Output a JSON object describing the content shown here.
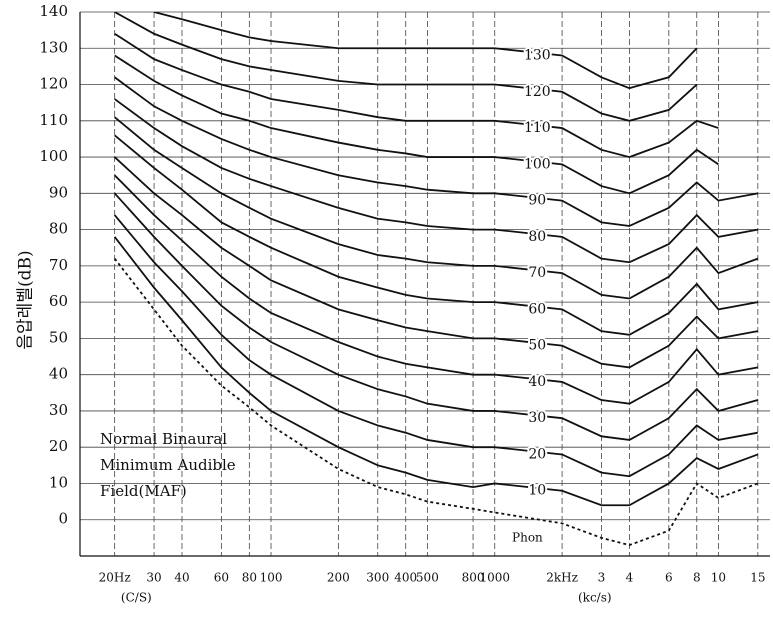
{
  "chart_data": {
    "type": "line",
    "y_label": "음압레벨(dB)",
    "x_unit_labels": [
      "(C/S)",
      "(kc/s)"
    ],
    "annotation_lines": [
      "Normal Binaural",
      "Minimum Audible",
      "Field(MAF)"
    ],
    "unit_label": "Phon",
    "x_scale": "log",
    "grid": true,
    "x": [
      20,
      30,
      40,
      60,
      80,
      100,
      200,
      300,
      400,
      500,
      800,
      1000,
      2000,
      3000,
      4000,
      6000,
      8000,
      10000,
      15000
    ],
    "xlim": [
      14,
      17000
    ],
    "xticks": [
      {
        "value": 20,
        "label": "20Hz"
      },
      30,
      40,
      60,
      80,
      100,
      200,
      300,
      400,
      500,
      800,
      1000,
      {
        "value": 2000,
        "label": "2kHz"
      },
      {
        "value": 3000,
        "label": "3"
      },
      {
        "value": 4000,
        "label": "4"
      },
      {
        "value": 6000,
        "label": "6"
      },
      {
        "value": 8000,
        "label": "8"
      },
      {
        "value": 10000,
        "label": "10"
      },
      {
        "value": 15000,
        "label": "15"
      }
    ],
    "ylim": [
      -10,
      140
    ],
    "yticks": [
      0,
      10,
      20,
      30,
      40,
      50,
      60,
      70,
      80,
      90,
      100,
      110,
      120,
      130,
      140
    ],
    "series": [
      {
        "name": "10",
        "color": "#111111",
        "values": [
          78,
          64,
          55,
          42,
          35,
          30,
          20,
          15,
          13,
          11,
          9,
          10,
          8,
          4,
          4,
          10,
          17,
          14,
          18
        ]
      },
      {
        "name": "20",
        "color": "#111111",
        "values": [
          84,
          71,
          63,
          51,
          44,
          40,
          30,
          26,
          24,
          22,
          20,
          20,
          18,
          13,
          12,
          18,
          26,
          22,
          24
        ]
      },
      {
        "name": "30",
        "color": "#111111",
        "values": [
          90,
          78,
          70,
          59,
          53,
          49,
          40,
          36,
          34,
          32,
          30,
          30,
          28,
          23,
          22,
          28,
          36,
          30,
          33
        ]
      },
      {
        "name": "40",
        "color": "#111111",
        "values": [
          95,
          84,
          77,
          67,
          61,
          57,
          49,
          45,
          43,
          42,
          40,
          40,
          38,
          33,
          32,
          38,
          47,
          40,
          42
        ]
      },
      {
        "name": "50",
        "color": "#111111",
        "values": [
          100,
          90,
          84,
          75,
          70,
          66,
          58,
          55,
          53,
          52,
          50,
          50,
          48,
          43,
          42,
          48,
          56,
          50,
          52
        ]
      },
      {
        "name": "60",
        "color": "#111111",
        "values": [
          106,
          97,
          91,
          82,
          78,
          75,
          67,
          64,
          62,
          61,
          60,
          60,
          58,
          52,
          51,
          57,
          65,
          58,
          60
        ]
      },
      {
        "name": "70",
        "color": "#111111",
        "values": [
          111,
          102,
          97,
          90,
          86,
          83,
          76,
          73,
          72,
          71,
          70,
          70,
          68,
          62,
          61,
          67,
          75,
          68,
          72
        ]
      },
      {
        "name": "80",
        "color": "#111111",
        "values": [
          116,
          108,
          103,
          97,
          94,
          92,
          86,
          83,
          82,
          81,
          80,
          80,
          78,
          72,
          71,
          76,
          84,
          78,
          80
        ]
      },
      {
        "name": "90",
        "color": "#111111",
        "values": [
          122,
          114,
          110,
          105,
          102,
          100,
          95,
          93,
          92,
          91,
          90,
          90,
          88,
          82,
          81,
          86,
          93,
          88,
          90
        ]
      },
      {
        "name": "100",
        "color": "#111111",
        "values": [
          128,
          121,
          117,
          112,
          110,
          108,
          104,
          102,
          101,
          100,
          100,
          100,
          98,
          92,
          90,
          95,
          102,
          98,
          null
        ]
      },
      {
        "name": "110",
        "color": "#111111",
        "values": [
          134,
          127,
          124,
          120,
          118,
          116,
          113,
          111,
          110,
          110,
          110,
          110,
          108,
          102,
          100,
          104,
          110,
          108,
          null
        ]
      },
      {
        "name": "120",
        "color": "#111111",
        "values": [
          140,
          134,
          131,
          127,
          125,
          124,
          121,
          120,
          120,
          120,
          120,
          120,
          118,
          112,
          110,
          113,
          120,
          null,
          null
        ]
      },
      {
        "name": "130",
        "color": "#111111",
        "values": [
          null,
          140,
          138,
          135,
          133,
          132,
          130,
          130,
          130,
          130,
          130,
          130,
          128,
          122,
          119,
          122,
          130,
          null,
          null
        ]
      },
      {
        "color": "#111111",
        "style": "dotted",
        "values": [
          72,
          58,
          48,
          37,
          31,
          26,
          14,
          9,
          7,
          5,
          3,
          2,
          -1,
          -5,
          -7,
          -3,
          10,
          6,
          10
        ]
      }
    ]
  }
}
